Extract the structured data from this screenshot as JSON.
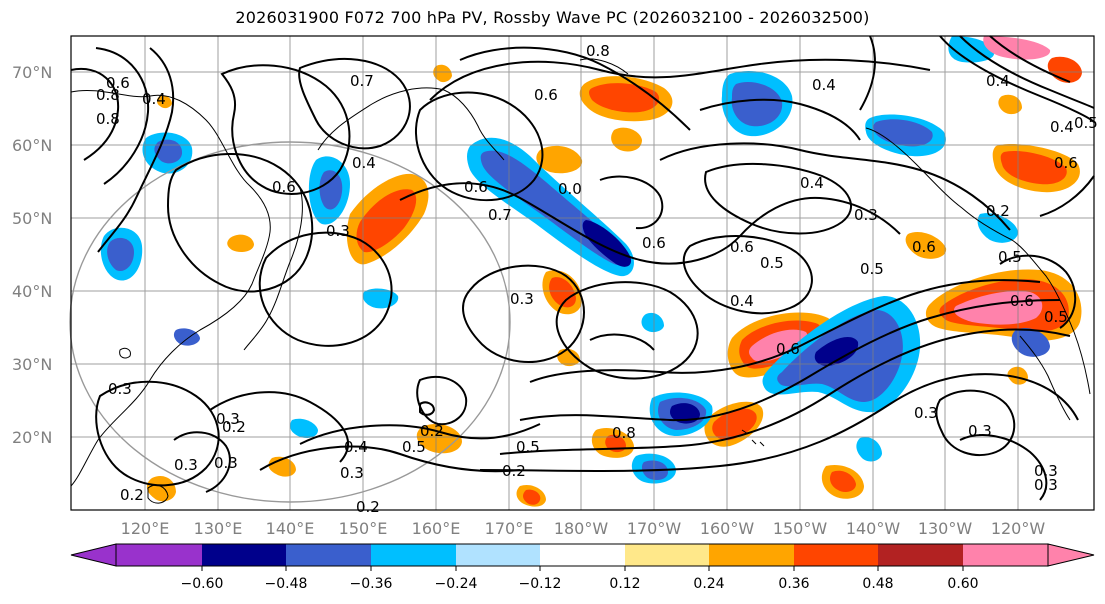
{
  "title": "2026031900 F072 700 hPa PV, Rossby Wave PC (2026032100 - 2026032500)",
  "latitude_labels": [
    "70°N",
    "60°N",
    "50°N",
    "40°N",
    "30°N",
    "20°N"
  ],
  "longitude_labels": [
    "120°E",
    "130°E",
    "140°E",
    "150°E",
    "160°E",
    "170°E",
    "180°W",
    "170°W",
    "160°W",
    "150°W",
    "140°W",
    "130°W",
    "120°W"
  ],
  "contour_labels": [
    "0.8",
    "0.6",
    "0.4",
    "0.8",
    "0.7",
    "0.6",
    "0.6",
    "0.3",
    "0.4",
    "0.4",
    "0.3",
    "0.3",
    "0.3",
    "0.4",
    "0.5",
    "0.6",
    "0.6",
    "0.7",
    "0.0",
    "0.8",
    "0.4",
    "0.3",
    "0.6",
    "0.5",
    "0.5",
    "0.4",
    "0.6",
    "0.6",
    "0.3",
    "0.2",
    "0.3",
    "0.2",
    "0.3",
    "0.3",
    "0.4",
    "0.5",
    "0.5",
    "0.2",
    "0.2",
    "0.2",
    "0.3",
    "0.3",
    "0.3",
    "0.2",
    "0.5",
    "0.8",
    "0.4",
    "0.5",
    "0.6",
    "0.6"
  ],
  "colorbar": {
    "tick_labels": [
      "−0.60",
      "−0.48",
      "−0.36",
      "−0.24",
      "−0.12",
      "0.12",
      "0.24",
      "0.36",
      "0.48",
      "0.60"
    ],
    "colors": [
      "#9932cc",
      "#00008b",
      "#3a5fcd",
      "#00bfff",
      "#b0e2ff",
      "#ffffff",
      "#ffe88a",
      "#ffa500",
      "#ff4500",
      "#b22222",
      "#ff82ab",
      "#ff82ab"
    ]
  },
  "colors": {
    "grid": "#808080",
    "coast": "#000000",
    "contour": "#000000",
    "circle": "#808080"
  }
}
